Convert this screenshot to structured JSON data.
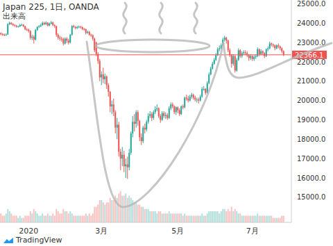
{
  "chart_data": {
    "type": "candlestick",
    "title": "Japan 225, 1日, OANDA",
    "source": "TradingView",
    "categories": [
      null,
      null,
      null,
      null,
      null,
      null,
      null,
      null,
      null,
      null,
      null,
      null,
      null,
      null,
      null,
      null,
      "2020",
      null,
      null,
      null,
      null,
      null,
      null,
      null,
      null,
      null,
      null,
      null,
      null,
      null,
      null,
      null,
      null,
      null,
      null,
      null,
      null,
      null,
      null,
      null,
      null,
      null,
      null,
      null,
      null,
      null,
      null,
      null,
      null,
      null,
      null,
      null,
      null,
      null,
      null,
      null,
      null,
      null,
      "3月",
      null,
      null,
      null,
      null,
      null,
      null,
      null,
      null,
      null,
      null,
      null,
      null,
      null,
      null,
      null,
      null,
      null,
      null,
      null,
      null,
      null,
      null,
      null,
      null,
      null,
      null,
      null,
      null,
      null,
      null,
      null,
      null,
      null,
      null,
      null,
      null,
      null,
      null,
      null,
      null,
      null,
      null,
      null,
      "5月",
      null,
      null,
      null,
      null,
      null,
      null,
      null,
      null,
      null,
      null,
      null,
      null,
      null,
      null,
      null,
      null,
      null,
      null,
      null,
      null,
      null,
      null,
      null,
      null,
      null,
      null,
      null,
      null,
      null,
      null,
      null,
      null,
      null,
      null,
      null,
      null,
      null,
      null,
      null,
      null,
      null,
      null,
      "7月",
      null,
      null,
      null,
      null,
      null,
      null,
      null,
      null,
      null,
      null,
      null,
      null,
      null,
      null,
      null,
      null,
      null,
      null
    ],
    "series": [
      {
        "type": "candlestick",
        "open": [
          23480,
          23430,
          23410,
          23390,
          23420,
          23950,
          24020,
          23960,
          23900,
          23870,
          23820,
          23830,
          23910,
          23920,
          23840,
          23680,
          23660,
          23600,
          23250,
          23300,
          23150,
          23650,
          23800,
          23850,
          23900,
          24020,
          23950,
          24030,
          23880,
          23980,
          24040,
          23900,
          23850,
          23400,
          23250,
          23200,
          23180,
          22950,
          23200,
          23100,
          23000,
          23400,
          23850,
          23800,
          23750,
          23800,
          23820,
          23790,
          23700,
          23690,
          23500,
          23550,
          23400,
          23380,
          23200,
          23000,
          22400,
          22050,
          21200,
          21350,
          21100,
          21250,
          20800,
          20450,
          19700,
          19800,
          19400,
          18600,
          18750,
          17350,
          17000,
          17200,
          16600,
          16700,
          16550,
          17300,
          18300,
          18900,
          18800,
          19400,
          18950,
          18100,
          17900,
          18600,
          18500,
          18900,
          19200,
          19300,
          19100,
          19400,
          19550,
          19600,
          19200,
          19000,
          19350,
          19200,
          19250,
          19100,
          19600,
          19800,
          19700,
          19400,
          19650,
          19500,
          19300,
          19700,
          19650,
          20150,
          20100,
          20000,
          20200,
          20300,
          20150,
          20050,
          20050,
          20000,
          20200,
          20600,
          20600,
          20400,
          20900,
          21350,
          21650,
          21900,
          22100,
          22350,
          22650,
          22700,
          22850,
          23150,
          23250,
          23100,
          22600,
          22350,
          21900,
          22300,
          21550,
          22100,
          22600,
          22300,
          22450,
          22500,
          22450,
          22350,
          22200,
          22300,
          22150,
          22250,
          22300,
          22650,
          22400,
          22550,
          22450,
          22300,
          22650,
          22700,
          22950,
          22900,
          22850,
          22700,
          22850,
          22800,
          22700,
          22550
        ],
        "high": [
          23530,
          23490,
          23470,
          23480,
          24000,
          24080,
          24060,
          24000,
          23950,
          23920,
          23880,
          23960,
          23980,
          23960,
          23870,
          23740,
          23720,
          23640,
          23400,
          23380,
          23700,
          23850,
          23900,
          23960,
          24080,
          24070,
          24100,
          24060,
          24030,
          24120,
          24080,
          23950,
          23870,
          23480,
          23350,
          23300,
          23250,
          23260,
          23280,
          23200,
          23450,
          23900,
          23920,
          23860,
          23860,
          23880,
          23870,
          23830,
          23760,
          23720,
          23620,
          23600,
          23460,
          23420,
          23250,
          23050,
          22500,
          22150,
          21500,
          21700,
          21400,
          21300,
          20900,
          20500,
          20000,
          20100,
          19500,
          19100,
          18900,
          17500,
          17600,
          17400,
          17000,
          17100,
          17500,
          18400,
          19200,
          19300,
          19500,
          19500,
          19000,
          18300,
          18700,
          18800,
          19000,
          19350,
          19450,
          19400,
          19500,
          19700,
          19800,
          19650,
          19300,
          19450,
          19450,
          19400,
          19350,
          19700,
          19900,
          19900,
          19750,
          19700,
          19700,
          19600,
          19750,
          19800,
          20200,
          20300,
          20250,
          20300,
          20400,
          20350,
          20250,
          20150,
          20150,
          20300,
          20700,
          20750,
          20650,
          21000,
          21450,
          21750,
          22000,
          22200,
          22450,
          22750,
          22850,
          22950,
          23250,
          23350,
          23300,
          23150,
          22700,
          22400,
          22400,
          22350,
          22200,
          22700,
          22650,
          22550,
          22600,
          22600,
          22550,
          22400,
          22400,
          22350,
          22350,
          22400,
          22750,
          22700,
          22650,
          22600,
          22500,
          22700,
          22800,
          23050,
          23000,
          22950,
          22900,
          22900,
          22950,
          22850,
          22750,
          22600
        ],
        "low": [
          23380,
          23350,
          23330,
          23340,
          23400,
          23900,
          23910,
          23850,
          23820,
          23770,
          23780,
          23800,
          23860,
          23790,
          23640,
          23600,
          23520,
          23150,
          23120,
          22950,
          23100,
          23600,
          23750,
          23800,
          23870,
          23900,
          23900,
          23830,
          23840,
          23940,
          23850,
          23750,
          23300,
          23150,
          23100,
          23050,
          22850,
          22900,
          22980,
          22900,
          22950,
          23350,
          23750,
          23680,
          23700,
          23740,
          23720,
          23640,
          23620,
          23420,
          23450,
          23350,
          23300,
          23100,
          22500,
          22300,
          21900,
          21000,
          20800,
          20900,
          20850,
          20600,
          20200,
          19400,
          19300,
          19200,
          18300,
          18000,
          17100,
          16400,
          16600,
          16300,
          16000,
          15950,
          16400,
          17200,
          18100,
          18400,
          18600,
          18700,
          17900,
          17700,
          17800,
          18300,
          18400,
          18800,
          19100,
          18950,
          19000,
          19300,
          19450,
          19100,
          18850,
          18950,
          19100,
          19050,
          19000,
          19050,
          19500,
          19600,
          19300,
          19250,
          19350,
          19200,
          19250,
          19550,
          19600,
          20000,
          19900,
          19950,
          20100,
          20050,
          19950,
          19900,
          19850,
          19950,
          20150,
          20500,
          20300,
          20350,
          20850,
          21300,
          21600,
          21850,
          22050,
          22300,
          22550,
          22650,
          22800,
          23050,
          22950,
          22500,
          22250,
          21700,
          21800,
          21450,
          21500,
          22050,
          22200,
          22200,
          22350,
          22350,
          22250,
          22050,
          22100,
          22050,
          22050,
          22150,
          22250,
          22300,
          22350,
          22350,
          22200,
          22250,
          22550,
          22650,
          22800,
          22750,
          22600,
          22650,
          22700,
          22600,
          22450,
          22300
        ],
        "close": [
          23430,
          23410,
          23390,
          23420,
          23950,
          24020,
          23960,
          23900,
          23870,
          23820,
          23830,
          23910,
          23920,
          23840,
          23680,
          23660,
          23600,
          23250,
          23300,
          23150,
          23650,
          23800,
          23850,
          23900,
          24020,
          23950,
          24030,
          23880,
          23980,
          24040,
          23900,
          23850,
          23400,
          23250,
          23200,
          23180,
          22950,
          23200,
          23100,
          23000,
          23400,
          23850,
          23800,
          23750,
          23800,
          23820,
          23790,
          23700,
          23690,
          23500,
          23550,
          23400,
          23380,
          23200,
          22600,
          22400,
          22050,
          21200,
          21350,
          21100,
          21250,
          20800,
          20450,
          19700,
          19800,
          19400,
          18600,
          18750,
          17350,
          17000,
          17200,
          16600,
          16700,
          16550,
          17300,
          18300,
          18900,
          18800,
          19400,
          18950,
          18100,
          17900,
          18600,
          18500,
          18900,
          19200,
          19300,
          19100,
          19400,
          19550,
          19600,
          19200,
          19000,
          19350,
          19200,
          19250,
          19100,
          19600,
          19800,
          19700,
          19400,
          19650,
          19500,
          19300,
          19700,
          19650,
          20150,
          20100,
          20000,
          20200,
          20300,
          20150,
          20050,
          20050,
          20000,
          20200,
          20600,
          20600,
          20400,
          20900,
          21350,
          21650,
          21900,
          22100,
          22350,
          22650,
          22700,
          22850,
          23150,
          23250,
          23100,
          22600,
          22350,
          21900,
          22300,
          21550,
          22100,
          22600,
          22300,
          22450,
          22500,
          22450,
          22350,
          22200,
          22300,
          22150,
          22250,
          22300,
          22650,
          22400,
          22550,
          22450,
          22300,
          22650,
          22700,
          22950,
          22900,
          22850,
          22700,
          22850,
          22800,
          22700,
          22550,
          22366.1
        ]
      },
      {
        "type": "bar",
        "name": "出来高",
        "axis": "y2",
        "values": [
          4,
          3,
          3,
          4,
          6,
          5,
          4,
          3,
          3,
          3,
          2,
          3,
          2,
          2,
          3,
          3,
          3,
          5,
          4,
          6,
          5,
          4,
          3,
          3,
          4,
          3,
          3,
          4,
          3,
          3,
          4,
          3,
          6,
          5,
          4,
          4,
          6,
          5,
          5,
          4,
          5,
          4,
          3,
          3,
          3,
          3,
          3,
          3,
          3,
          4,
          3,
          4,
          3,
          4,
          7,
          7,
          8,
          10,
          10,
          9,
          8,
          9,
          9,
          11,
          10,
          10,
          12,
          11,
          13,
          14,
          12,
          12,
          13,
          11,
          12,
          11,
          10,
          9,
          9,
          8,
          8,
          7,
          7,
          6,
          6,
          6,
          5,
          5,
          5,
          5,
          4,
          5,
          5,
          4,
          4,
          4,
          4,
          5,
          4,
          4,
          4,
          4,
          4,
          4,
          4,
          3,
          4,
          3,
          3,
          3,
          3,
          3,
          3,
          3,
          3,
          3,
          4,
          3,
          3,
          4,
          5,
          5,
          5,
          5,
          5,
          5,
          4,
          5,
          6,
          6,
          5,
          6,
          5,
          7,
          5,
          6,
          5,
          4,
          4,
          3,
          3,
          3,
          3,
          3,
          3,
          3,
          3,
          3,
          4,
          3,
          3,
          3,
          3,
          3,
          3,
          3,
          3,
          2,
          2,
          2,
          2,
          2,
          3,
          3
        ]
      }
    ],
    "colors": [
      "#26a69a",
      "#ef5350"
    ],
    "ylim": [
      13700,
      25200
    ],
    "yticks": [
      {
        "value": 15000,
        "label": "15000.0"
      },
      {
        "value": 16000,
        "label": "16000.0"
      },
      {
        "value": 17000,
        "label": "17000.0"
      },
      {
        "value": 18000,
        "label": "18000.0"
      },
      {
        "value": 19000,
        "label": "19000.0"
      },
      {
        "value": 20000,
        "label": "20000.0"
      },
      {
        "value": 21000,
        "label": "21000.0"
      },
      {
        "value": 22000,
        "label": "22000.0"
      },
      {
        "value": 23000,
        "label": "23000.0"
      },
      {
        "value": 24000,
        "label": "24000.0"
      },
      {
        "value": 25000,
        "label": "25000.0"
      }
    ],
    "y2lim": [
      0,
      100
    ],
    "grid": false,
    "annotations": [
      {
        "y": 22366.1,
        "color": "#ef5350"
      }
    ]
  }
}
